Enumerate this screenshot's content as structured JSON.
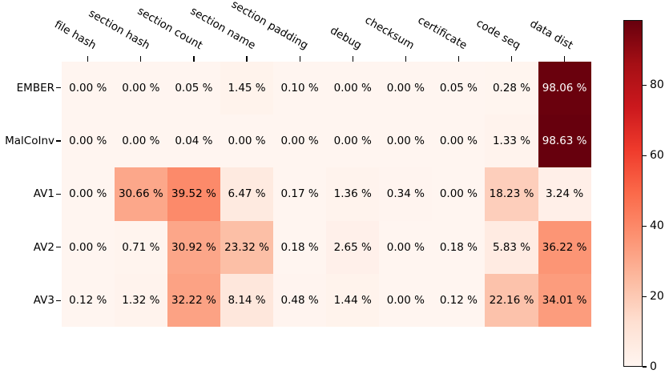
{
  "chart_data": {
    "type": "heatmap",
    "title": "",
    "xlabel": "",
    "ylabel": "",
    "columns": [
      "file hash",
      "section hash",
      "section count",
      "section name",
      "section padding",
      "debug",
      "checksum",
      "certificate",
      "code seq",
      "data dist"
    ],
    "rows": [
      "EMBER",
      "MalCoInv",
      "AV1",
      "AV2",
      "AV3"
    ],
    "series": [
      {
        "name": "EMBER",
        "values": [
          0.0,
          0.0,
          0.05,
          1.45,
          0.1,
          0.0,
          0.0,
          0.05,
          0.28,
          98.06
        ]
      },
      {
        "name": "MalCoInv",
        "values": [
          0.0,
          0.0,
          0.04,
          0.0,
          0.0,
          0.0,
          0.0,
          0.0,
          1.33,
          98.63
        ]
      },
      {
        "name": "AV1",
        "values": [
          0.0,
          30.66,
          39.52,
          6.47,
          0.17,
          1.36,
          0.34,
          0.0,
          18.23,
          3.24
        ]
      },
      {
        "name": "AV2",
        "values": [
          0.0,
          0.71,
          30.92,
          23.32,
          0.18,
          2.65,
          0.0,
          0.18,
          5.83,
          36.22
        ]
      },
      {
        "name": "AV3",
        "values": [
          0.12,
          1.32,
          32.22,
          8.14,
          0.48,
          1.44,
          0.0,
          0.12,
          22.16,
          34.01
        ]
      }
    ],
    "value_suffix": " %",
    "value_decimals": 2,
    "colormap": "Reds",
    "vmin": 0,
    "vmax": 98.63,
    "grid_lines": false,
    "legend": "none",
    "colorbar": {
      "position": "right",
      "tick_labels": [
        "0",
        "20",
        "40",
        "60",
        "80"
      ],
      "tick_values": [
        0,
        20,
        40,
        60,
        80
      ]
    },
    "colormap_stops": [
      {
        "t": 0.0,
        "color": "#fff5f0"
      },
      {
        "t": 0.125,
        "color": "#fee0d2"
      },
      {
        "t": 0.25,
        "color": "#fcbba1"
      },
      {
        "t": 0.375,
        "color": "#fc9272"
      },
      {
        "t": 0.5,
        "color": "#fb6a4a"
      },
      {
        "t": 0.625,
        "color": "#ef3b2c"
      },
      {
        "t": 0.75,
        "color": "#cb181d"
      },
      {
        "t": 0.875,
        "color": "#a50f15"
      },
      {
        "t": 1.0,
        "color": "#67000d"
      }
    ],
    "text_colors": {
      "light_cell_text": "#000000",
      "dark_cell_text": "#ffffff",
      "white_text_threshold": 50,
      "tick_color": "#000000",
      "colorbar_border": "#0d0d0d"
    }
  }
}
